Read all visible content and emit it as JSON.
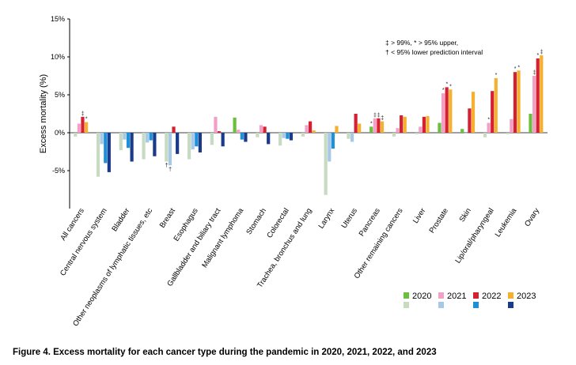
{
  "caption": "Figure 4. Excess mortality for each cancer type during the pandemic in 2020, 2021, 2022, and 2023",
  "chart_data": {
    "type": "bar",
    "ylabel": "Excess  mortality (%)",
    "ylim": [
      -10,
      15
    ],
    "yticks": [
      -5,
      0,
      5,
      10,
      15
    ],
    "ytick_labels": [
      "-5%",
      "0%",
      "5%",
      "10%",
      "15%"
    ],
    "grid": false,
    "legend_position": "bottom-right",
    "annotation_lines": [
      "‡ > 99%, * > 95% upper,",
      "† < 95% lower prediction interval"
    ],
    "categories": [
      "All cancers",
      "Central nervous system",
      "Bladder",
      "Other neoplasms of lymphatic tissues, etc",
      "Breast",
      "Esophagus",
      "Gallbladder and biliary tract",
      "Malignant lymphoma",
      "Stomach",
      "Colorectal",
      "Trachea, bronchus and lung",
      "Larynx",
      "Uterus",
      "Pancreas",
      "Other remaining cancers",
      "Liver",
      "Prostate",
      "Skin",
      "Lip/oral/pharyngeal",
      "Leukemia",
      "Ovary"
    ],
    "series": [
      {
        "name": "2020",
        "colors": {
          "pos": "#6abf3f",
          "neg": "#c7dbc2"
        },
        "values": [
          -0.5,
          -5.8,
          -2.3,
          -3.5,
          -3.8,
          -3.5,
          -1.6,
          2.0,
          -0.6,
          -1.7,
          -0.5,
          -8.2,
          -0.8,
          0.8,
          -0.5,
          -0.2,
          1.3,
          0.5,
          -0.6,
          -0.2,
          2.5
        ],
        "marks": [
          "",
          "",
          "",
          "",
          "†",
          "",
          "",
          "",
          "",
          "",
          "",
          "",
          "",
          "*",
          "",
          "",
          "",
          "",
          "",
          "",
          ""
        ]
      },
      {
        "name": "2021",
        "colors": {
          "pos": "#f2a0c8",
          "neg": "#a8c8e8"
        },
        "values": [
          1.2,
          -1.5,
          -0.9,
          -1.3,
          -4.3,
          -2.2,
          2.1,
          0.4,
          1.0,
          -0.7,
          1.0,
          -3.8,
          -1.2,
          1.9,
          0.6,
          0.8,
          5.2,
          -0.1,
          1.3,
          1.8,
          7.5
        ],
        "marks": [
          "",
          "",
          "",
          "",
          "†",
          "",
          "",
          "",
          "",
          "",
          "",
          "",
          "",
          "‡",
          "",
          "",
          "*",
          "",
          "*",
          "",
          "‡"
        ]
      },
      {
        "name": "2022",
        "colors": {
          "pos": "#d42030",
          "neg": "#1e90d8"
        },
        "values": [
          2.1,
          -4.0,
          -2.0,
          -1.0,
          0.8,
          -1.8,
          0.2,
          -0.9,
          0.8,
          -0.8,
          1.5,
          -2.1,
          2.5,
          1.9,
          2.3,
          2.1,
          6.0,
          3.2,
          5.5,
          8.0,
          9.8
        ],
        "marks": [
          "‡",
          "",
          "",
          "",
          "",
          "",
          "",
          "",
          "",
          "",
          "",
          "",
          "",
          "‡",
          "",
          "",
          "*",
          "",
          "",
          "*",
          "*"
        ]
      },
      {
        "name": "2023",
        "colors": {
          "pos": "#f5b030",
          "neg": "#1a3a8a"
        },
        "values": [
          1.4,
          -5.2,
          -3.8,
          -3.1,
          -2.8,
          -2.6,
          -1.8,
          -1.2,
          -1.5,
          -1.0,
          0.3,
          0.9,
          1.2,
          1.5,
          2.1,
          2.2,
          5.7,
          5.4,
          7.2,
          8.2,
          10.2
        ],
        "marks": [
          "*",
          "",
          "",
          "",
          "",
          "",
          "",
          "",
          "",
          "",
          "",
          "",
          "",
          "‡",
          "",
          "",
          "*",
          "",
          "*",
          "*",
          "‡"
        ]
      }
    ]
  }
}
